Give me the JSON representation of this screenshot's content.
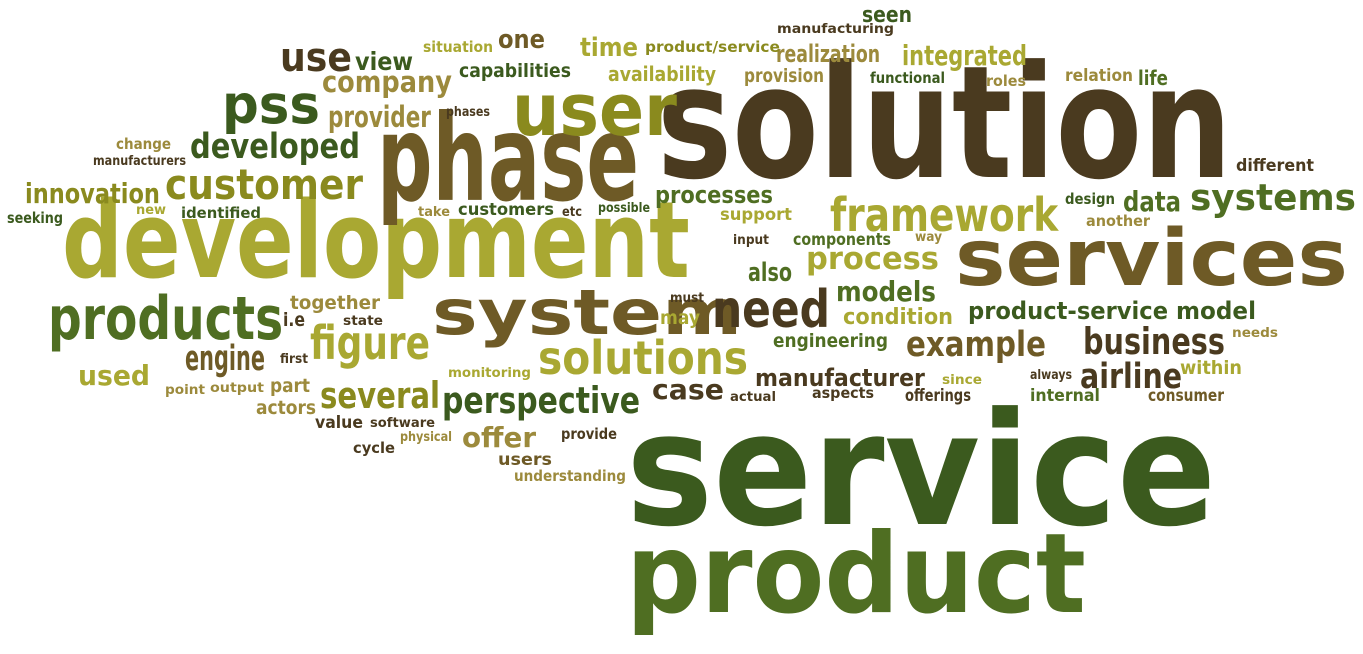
{
  "palette": {
    "dark_brown": "#4a3a1f",
    "brown": "#6e5a26",
    "olive": "#8a8a1e",
    "light_olive": "#a9a832",
    "dark_green": "#3b5a1e",
    "green": "#4f6e22",
    "khaki": "#9c8a3c"
  },
  "words": [
    {
      "text": "service",
      "color": "dark_green"
    },
    {
      "text": "solution",
      "color": "dark_brown"
    },
    {
      "text": "product",
      "color": "green"
    },
    {
      "text": "development",
      "color": "light_olive"
    },
    {
      "text": "phase",
      "color": "brown"
    },
    {
      "text": "services",
      "color": "brown"
    },
    {
      "text": "system",
      "color": "brown"
    },
    {
      "text": "user",
      "color": "olive"
    },
    {
      "text": "products",
      "color": "green"
    },
    {
      "text": "pss",
      "color": "dark_green"
    },
    {
      "text": "need",
      "color": "dark_brown"
    },
    {
      "text": "framework",
      "color": "light_olive"
    },
    {
      "text": "solutions",
      "color": "light_olive"
    },
    {
      "text": "figure",
      "color": "light_olive"
    },
    {
      "text": "customer",
      "color": "olive"
    },
    {
      "text": "use",
      "color": "dark_brown"
    },
    {
      "text": "developed",
      "color": "dark_green"
    },
    {
      "text": "systems",
      "color": "green"
    },
    {
      "text": "perspective",
      "color": "dark_green"
    },
    {
      "text": "several",
      "color": "olive"
    },
    {
      "text": "business",
      "color": "dark_brown"
    },
    {
      "text": "example",
      "color": "brown"
    },
    {
      "text": "airline",
      "color": "dark_brown"
    },
    {
      "text": "engine",
      "color": "brown"
    },
    {
      "text": "process",
      "color": "light_olive"
    },
    {
      "text": "company",
      "color": "khaki"
    },
    {
      "text": "provider",
      "color": "khaki"
    },
    {
      "text": "innovation",
      "color": "olive"
    },
    {
      "text": "time",
      "color": "light_olive"
    },
    {
      "text": "integrated",
      "color": "light_olive"
    },
    {
      "text": "one",
      "color": "brown"
    },
    {
      "text": "view",
      "color": "dark_green"
    },
    {
      "text": "data",
      "color": "green"
    },
    {
      "text": "models",
      "color": "green"
    },
    {
      "text": "used",
      "color": "light_olive"
    },
    {
      "text": "case",
      "color": "dark_brown"
    },
    {
      "text": "offer",
      "color": "khaki"
    },
    {
      "text": "also",
      "color": "green"
    },
    {
      "text": "manufacturer",
      "color": "dark_brown"
    },
    {
      "text": "product-service",
      "color": "dark_green"
    },
    {
      "text": "model",
      "color": "dark_green"
    },
    {
      "text": "processes",
      "color": "green"
    },
    {
      "text": "realization",
      "color": "khaki"
    },
    {
      "text": "capabilities",
      "color": "dark_green"
    },
    {
      "text": "availability",
      "color": "light_olive"
    },
    {
      "text": "condition",
      "color": "light_olive"
    },
    {
      "text": "seen",
      "color": "dark_green"
    },
    {
      "text": "life",
      "color": "green"
    },
    {
      "text": "provision",
      "color": "khaki"
    },
    {
      "text": "customers",
      "color": "dark_green"
    },
    {
      "text": "engineering",
      "color": "green"
    },
    {
      "text": "components",
      "color": "green"
    },
    {
      "text": "internal",
      "color": "green"
    },
    {
      "text": "offerings",
      "color": "dark_brown"
    },
    {
      "text": "within",
      "color": "light_olive"
    },
    {
      "text": "together",
      "color": "khaki"
    },
    {
      "text": "may",
      "color": "light_olive"
    },
    {
      "text": "part",
      "color": "khaki"
    },
    {
      "text": "actors",
      "color": "khaki"
    },
    {
      "text": "identified",
      "color": "dark_green"
    },
    {
      "text": "support",
      "color": "light_olive"
    },
    {
      "text": "users",
      "color": "brown"
    },
    {
      "text": "understanding",
      "color": "khaki"
    },
    {
      "text": "value",
      "color": "dark_brown"
    },
    {
      "text": "relation",
      "color": "khaki"
    },
    {
      "text": "different",
      "color": "dark_brown"
    },
    {
      "text": "design",
      "color": "dark_green"
    },
    {
      "text": "another",
      "color": "khaki"
    },
    {
      "text": "consumer",
      "color": "brown"
    },
    {
      "text": "manufacturing",
      "color": "dark_brown"
    },
    {
      "text": "product/service",
      "color": "olive"
    },
    {
      "text": "situation",
      "color": "light_olive"
    },
    {
      "text": "functional",
      "color": "dark_green"
    },
    {
      "text": "roles",
      "color": "khaki"
    },
    {
      "text": "phases",
      "color": "dark_brown"
    },
    {
      "text": "change",
      "color": "khaki"
    },
    {
      "text": "manufacturers",
      "color": "dark_brown"
    },
    {
      "text": "seeking",
      "color": "dark_green"
    },
    {
      "text": "new",
      "color": "light_olive"
    },
    {
      "text": "take",
      "color": "khaki"
    },
    {
      "text": "etc",
      "color": "dark_brown"
    },
    {
      "text": "possible",
      "color": "dark_green"
    },
    {
      "text": "input",
      "color": "dark_brown"
    },
    {
      "text": "way",
      "color": "khaki"
    },
    {
      "text": "i.e",
      "color": "dark_brown"
    },
    {
      "text": "state",
      "color": "dark_brown"
    },
    {
      "text": "must",
      "color": "dark_brown"
    },
    {
      "text": "needs",
      "color": "khaki"
    },
    {
      "text": "first",
      "color": "dark_brown"
    },
    {
      "text": "point",
      "color": "khaki"
    },
    {
      "text": "output",
      "color": "khaki"
    },
    {
      "text": "monitoring",
      "color": "light_olive"
    },
    {
      "text": "since",
      "color": "light_olive"
    },
    {
      "text": "always",
      "color": "dark_brown"
    },
    {
      "text": "actual",
      "color": "dark_brown"
    },
    {
      "text": "aspects",
      "color": "dark_brown"
    },
    {
      "text": "software",
      "color": "dark_brown"
    },
    {
      "text": "physical",
      "color": "khaki"
    },
    {
      "text": "cycle",
      "color": "dark_brown"
    },
    {
      "text": "provide",
      "color": "dark_brown"
    }
  ]
}
